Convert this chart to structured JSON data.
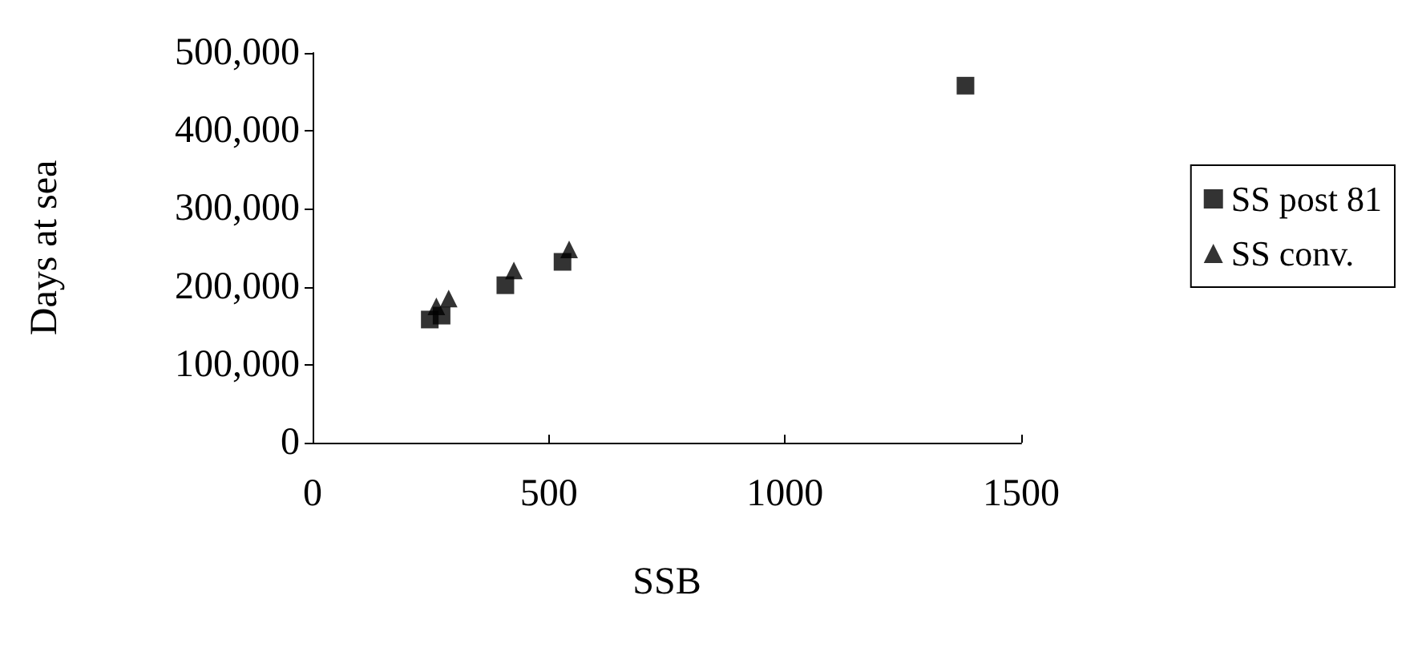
{
  "chart_data": {
    "type": "scatter",
    "xlabel": "SSB",
    "ylabel": "Days at sea",
    "series": [
      {
        "name": "SS post 81",
        "color": "#000000",
        "marker": "square",
        "x": [
          248,
          273,
          408,
          529,
          1382
        ],
        "values": [
          158000,
          163000,
          202000,
          232000,
          458000
        ]
      },
      {
        "name": "SS conv.",
        "color": "#000000",
        "marker": "triangle",
        "x": [
          262,
          288,
          426,
          543
        ],
        "values": [
          175000,
          185000,
          221000,
          248000
        ]
      }
    ],
    "xlim": [
      0,
      1500
    ],
    "xticks": [
      0,
      500,
      1000,
      1500
    ],
    "ylim": [
      0,
      500000
    ],
    "yticks": [
      0,
      {
        "value": 100000,
        "label": "100,000"
      },
      {
        "value": 200000,
        "label": "200,000"
      },
      {
        "value": 300000,
        "label": "300,000"
      },
      {
        "value": 400000,
        "label": "400,000"
      },
      {
        "value": 500000,
        "label": "500,000"
      }
    ],
    "grid": false,
    "legend": "right"
  }
}
